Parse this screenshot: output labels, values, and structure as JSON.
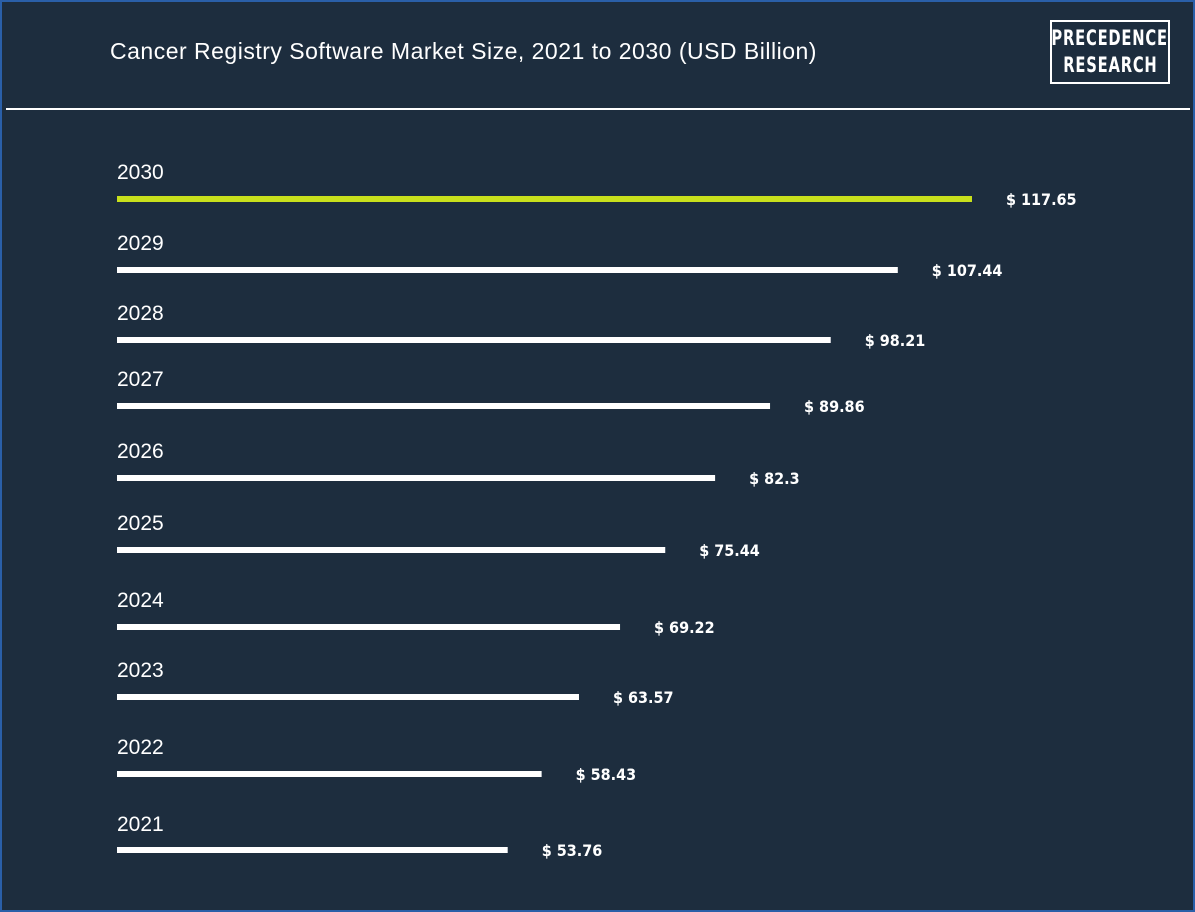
{
  "header": {
    "title": "Cancer Registry Software Market Size, 2021 to 2030 (USD Billion)",
    "logo_line1": "PRECEDENCE",
    "logo_line2": "RESEARCH"
  },
  "colors": {
    "background": "#1d2d3e",
    "bar": "#ffffff",
    "highlight_bar": "#c8e01c",
    "text": "#ffffff"
  },
  "chart_data": {
    "type": "bar",
    "orientation": "horizontal",
    "title": "Cancer Registry Software Market Size, 2021 to 2030 (USD Billion)",
    "categories": [
      "2030",
      "2029",
      "2028",
      "2027",
      "2026",
      "2025",
      "2024",
      "2023",
      "2022",
      "2021"
    ],
    "values": [
      117.65,
      107.44,
      98.21,
      89.86,
      82.3,
      75.44,
      69.22,
      63.57,
      58.43,
      53.76
    ],
    "value_labels": [
      "$ 117.65",
      "$ 107.44",
      "$ 98.21",
      "$ 89.86",
      "$ 82.3",
      "$ 75.44",
      "$ 69.22",
      "$ 63.57",
      "$ 58.43",
      "$ 53.76"
    ],
    "highlight_category": "2030",
    "grid": false,
    "legend": "none"
  }
}
